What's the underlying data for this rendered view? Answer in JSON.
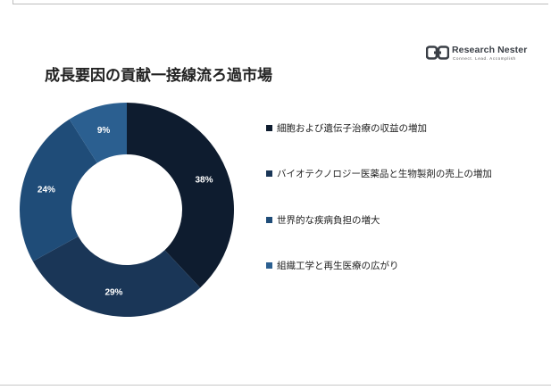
{
  "title": "成長要因の貢献一接線流ろ過市場",
  "logo": {
    "name": "Research Nester",
    "tagline": "Connect. Lead. Accomplish"
  },
  "chart_data": {
    "type": "pie",
    "donut": true,
    "title": "成長要因の貢献一接線流ろ過市場",
    "categories": [
      "細胞および遺伝子治療の収益の増加",
      "バイオテクノロジー医薬品と生物製剤の売上の増加",
      "世界的な疾病負担の増大",
      "組織工学と再生医療の広がり"
    ],
    "values": [
      38,
      29,
      24,
      9
    ],
    "labels": [
      "38%",
      "29%",
      "24%",
      "9%"
    ],
    "colors": [
      "#0e1c2f",
      "#1a3657",
      "#1f4c78",
      "#2b5f90"
    ],
    "label_colors": [
      "#ffffff",
      "#ffffff",
      "#ffffff",
      "#ffffff"
    ],
    "legend_position": "right"
  }
}
